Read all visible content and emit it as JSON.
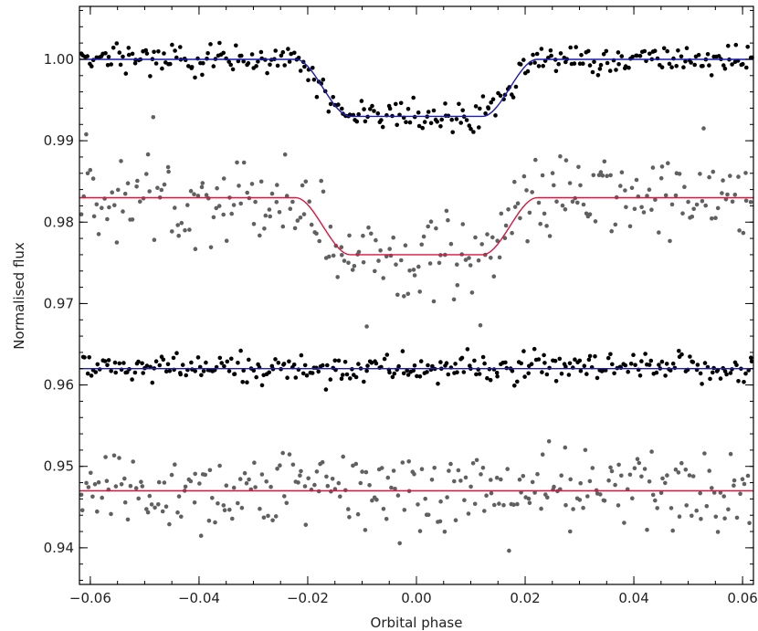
{
  "chart_data": {
    "type": "scatter",
    "title": "",
    "xlabel": "Orbital phase",
    "ylabel": "Normalised flux",
    "xlim": [
      -0.062,
      0.062
    ],
    "ylim": [
      0.9355,
      1.0065
    ],
    "grid": false,
    "legend": "none",
    "x_ticks": [
      -0.06,
      -0.04,
      -0.02,
      0.0,
      0.02,
      0.04,
      0.06
    ],
    "x_tick_labels": [
      "−0.06",
      "−0.04",
      "−0.02",
      "0.00",
      "0.02",
      "0.04",
      "0.06"
    ],
    "y_ticks": [
      0.94,
      0.95,
      0.96,
      0.97,
      0.98,
      0.99,
      1.0
    ],
    "y_tick_labels": [
      "0.94",
      "0.95",
      "0.96",
      "0.97",
      "0.98",
      "0.99",
      "1.00"
    ],
    "phase_range": [
      -0.062,
      0.062
    ],
    "series": [
      {
        "role": "light curve, dataset 1",
        "color": "#000000",
        "baseline": 1.0,
        "transit_depth": 0.007,
        "contact_points": [
          -0.0222,
          -0.0122,
          0.0122,
          0.0222
        ],
        "scatter_sigma": 0.0009,
        "n_points": 300,
        "model_color": "#1c1cb4"
      },
      {
        "role": "light curve, dataset 2",
        "color": "#606060",
        "baseline": 0.983,
        "transit_depth": 0.007,
        "contact_points": [
          -0.0222,
          -0.0122,
          0.0122,
          0.0222
        ],
        "scatter_sigma": 0.0026,
        "n_points": 280,
        "model_color": "#dc143c"
      },
      {
        "role": "residuals, dataset 1",
        "color": "#000000",
        "baseline": 0.962,
        "transit_depth": 0.0,
        "scatter_sigma": 0.0009,
        "n_points": 300,
        "model_color": "#1c1cb4"
      },
      {
        "role": "residuals, dataset 2",
        "color": "#606060",
        "baseline": 0.947,
        "transit_depth": 0.0,
        "scatter_sigma": 0.0026,
        "n_points": 280,
        "model_color": "#dc143c"
      }
    ]
  }
}
